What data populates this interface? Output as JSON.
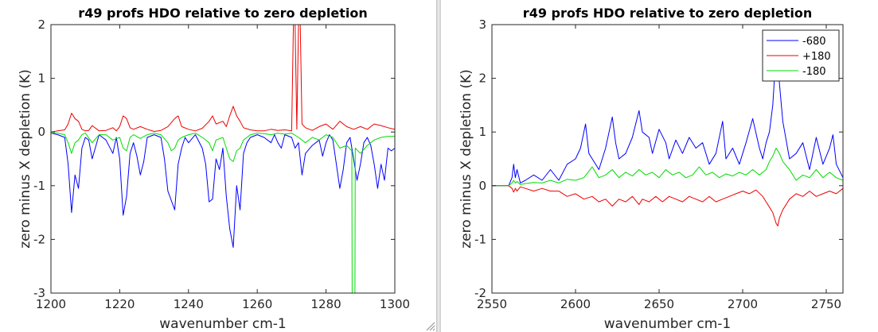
{
  "colors": {
    "blue": "#0000ff",
    "red": "#ee0000",
    "green": "#00dd00",
    "axis": "#262626",
    "background": "#ffffff"
  },
  "icons": {
    "resize": "resize-grip-icon"
  },
  "chart_data": [
    {
      "type": "line",
      "title": "r49 profs HDO relative to zero depletion",
      "xlabel": "wavenumber cm-1",
      "ylabel": "zero minus X depletion (K)",
      "xlim": [
        1200,
        1300
      ],
      "ylim": [
        -3,
        2
      ],
      "xticks": [
        1200,
        1220,
        1240,
        1260,
        1280,
        1300
      ],
      "yticks": [
        -3,
        -2,
        -1,
        0,
        1,
        2
      ],
      "grid": false,
      "legend": null,
      "series": [
        {
          "color": "#0000ff",
          "x": [
            1200,
            1202,
            1204,
            1205,
            1206,
            1207,
            1208,
            1209,
            1210,
            1211,
            1212,
            1214,
            1215,
            1216,
            1218,
            1219,
            1220,
            1221,
            1222,
            1223,
            1224,
            1225,
            1226,
            1227,
            1228,
            1230,
            1232,
            1233,
            1234,
            1236,
            1237,
            1238,
            1239,
            1240,
            1242,
            1244,
            1245,
            1246,
            1247,
            1248,
            1249,
            1250,
            1251,
            1252,
            1253,
            1254,
            1255,
            1256,
            1257,
            1258,
            1260,
            1262,
            1264,
            1265,
            1266,
            1267,
            1268,
            1270,
            1271,
            1272,
            1273,
            1274,
            1276,
            1278,
            1279,
            1280,
            1281,
            1282,
            1284,
            1285,
            1286,
            1287,
            1288,
            1289,
            1290,
            1291,
            1292,
            1293,
            1294,
            1295,
            1296,
            1297,
            1298,
            1299,
            1300
          ],
          "y": [
            -0.02,
            -0.05,
            -0.1,
            -0.6,
            -1.5,
            -0.8,
            -1.05,
            -0.3,
            -0.1,
            -0.15,
            -0.5,
            -0.05,
            -0.1,
            -0.15,
            -0.4,
            -0.1,
            -0.5,
            -1.55,
            -1.2,
            -0.4,
            -0.2,
            -0.45,
            -0.8,
            -0.55,
            -0.1,
            -0.05,
            -0.1,
            -0.5,
            -1.1,
            -1.45,
            -0.6,
            -0.3,
            -0.1,
            -0.2,
            -0.05,
            -0.3,
            -0.6,
            -1.3,
            -1.25,
            -0.5,
            -0.7,
            -0.3,
            -1.2,
            -1.8,
            -2.15,
            -1.0,
            -1.45,
            -0.4,
            -0.2,
            -0.1,
            -0.05,
            -0.1,
            -0.2,
            -0.05,
            -0.2,
            -0.3,
            -0.05,
            -0.1,
            -0.3,
            -0.2,
            -0.8,
            -0.4,
            -0.25,
            -0.15,
            -0.45,
            -0.2,
            -0.05,
            -0.15,
            -1.05,
            -0.7,
            -0.2,
            -0.1,
            -0.5,
            -0.9,
            -0.6,
            -0.2,
            -0.1,
            -0.25,
            -0.6,
            -1.05,
            -0.6,
            -0.9,
            -0.3,
            -0.35,
            -0.3
          ]
        },
        {
          "color": "#ee0000",
          "x": [
            1200,
            1202,
            1204,
            1205,
            1206,
            1207,
            1208,
            1209,
            1210,
            1211,
            1212,
            1214,
            1216,
            1218,
            1219,
            1220,
            1221,
            1222,
            1223,
            1224,
            1226,
            1228,
            1230,
            1232,
            1234,
            1236,
            1237,
            1238,
            1240,
            1242,
            1244,
            1246,
            1247,
            1248,
            1250,
            1251,
            1252,
            1253,
            1254,
            1255,
            1256,
            1258,
            1260,
            1262,
            1264,
            1266,
            1268,
            1270,
            1270.5,
            1271,
            1271.5,
            1272,
            1272.5,
            1273,
            1274,
            1276,
            1278,
            1280,
            1282,
            1284,
            1286,
            1288,
            1290,
            1292,
            1294,
            1296,
            1298,
            1300
          ],
          "y": [
            0.0,
            0.02,
            0.04,
            0.15,
            0.35,
            0.25,
            0.2,
            0.05,
            0.02,
            0.03,
            0.12,
            0.02,
            0.03,
            0.08,
            0.02,
            0.1,
            0.3,
            0.25,
            0.08,
            0.05,
            0.1,
            0.05,
            0.01,
            0.03,
            0.1,
            0.25,
            0.3,
            0.1,
            0.05,
            0.02,
            0.07,
            0.2,
            0.3,
            0.15,
            0.2,
            0.1,
            0.3,
            0.48,
            0.3,
            0.2,
            0.08,
            0.04,
            0.02,
            0.02,
            0.05,
            0.03,
            0.04,
            0.02,
            2.0,
            2.0,
            0.05,
            2.0,
            2.0,
            0.15,
            0.08,
            0.03,
            0.1,
            0.15,
            0.05,
            0.2,
            0.1,
            0.05,
            0.1,
            0.05,
            0.15,
            0.12,
            0.08,
            0.05
          ]
        },
        {
          "color": "#00dd00",
          "x": [
            1200,
            1202,
            1204,
            1205,
            1206,
            1207,
            1208,
            1209,
            1210,
            1212,
            1214,
            1216,
            1218,
            1220,
            1221,
            1222,
            1223,
            1224,
            1226,
            1228,
            1230,
            1232,
            1234,
            1235,
            1236,
            1237,
            1238,
            1240,
            1242,
            1244,
            1246,
            1247,
            1248,
            1250,
            1251,
            1252,
            1253,
            1254,
            1255,
            1256,
            1258,
            1260,
            1262,
            1264,
            1266,
            1268,
            1270,
            1272,
            1274,
            1276,
            1278,
            1280,
            1282,
            1284,
            1286,
            1287.5,
            1287.6,
            1288.4,
            1288.5,
            1290,
            1292,
            1294,
            1296,
            1298,
            1300
          ],
          "y": [
            -0.02,
            -0.02,
            -0.05,
            -0.2,
            -0.4,
            -0.2,
            -0.15,
            -0.05,
            -0.02,
            -0.2,
            -0.05,
            -0.05,
            -0.15,
            -0.1,
            -0.3,
            -0.35,
            -0.1,
            -0.05,
            -0.12,
            -0.05,
            -0.02,
            -0.05,
            -0.2,
            -0.35,
            -0.3,
            -0.15,
            -0.1,
            -0.05,
            -0.02,
            -0.1,
            -0.2,
            -0.35,
            -0.15,
            -0.1,
            -0.3,
            -0.5,
            -0.55,
            -0.35,
            -0.3,
            -0.15,
            -0.05,
            -0.02,
            -0.03,
            -0.05,
            -0.02,
            -0.04,
            -0.02,
            -0.1,
            -0.2,
            -0.1,
            -0.15,
            -0.05,
            -0.1,
            -0.3,
            -0.25,
            -0.35,
            -3.0,
            -3.0,
            -0.3,
            -0.4,
            -0.25,
            -0.15,
            -0.1,
            -0.08,
            -0.08
          ]
        }
      ]
    },
    {
      "type": "line",
      "title": "r49 profs HDO relative to zero depletion",
      "xlabel": "wavenumber cm-1",
      "ylabel": "zero minus X depletion (K)",
      "xlim": [
        2550,
        2760
      ],
      "ylim": [
        -2,
        3
      ],
      "xticks": [
        2550,
        2600,
        2650,
        2700,
        2750
      ],
      "yticks": [
        -2,
        -1,
        0,
        1,
        2,
        3
      ],
      "grid": false,
      "legend": {
        "placement": "top-right",
        "entries": [
          "-680",
          "+180",
          "-180"
        ]
      },
      "series": [
        {
          "name": "-680",
          "color": "#0000ff",
          "x": [
            2550,
            2555,
            2560,
            2562,
            2563,
            2564,
            2565,
            2567,
            2570,
            2575,
            2580,
            2585,
            2590,
            2595,
            2600,
            2603,
            2606,
            2608,
            2610,
            2614,
            2618,
            2622,
            2624,
            2626,
            2630,
            2634,
            2638,
            2640,
            2644,
            2646,
            2650,
            2654,
            2656,
            2660,
            2664,
            2668,
            2672,
            2676,
            2680,
            2684,
            2688,
            2690,
            2694,
            2698,
            2702,
            2706,
            2710,
            2712,
            2714,
            2716,
            2718,
            2719,
            2720,
            2721,
            2722,
            2724,
            2728,
            2732,
            2736,
            2740,
            2744,
            2748,
            2752,
            2754,
            2756,
            2760
          ],
          "y": [
            0.0,
            0.0,
            0.0,
            0.15,
            0.4,
            0.15,
            0.3,
            0.05,
            0.1,
            0.2,
            0.1,
            0.3,
            0.1,
            0.4,
            0.5,
            0.7,
            1.15,
            0.6,
            0.5,
            0.3,
            0.7,
            1.28,
            0.8,
            0.5,
            0.6,
            0.9,
            1.4,
            1.0,
            0.9,
            0.6,
            1.05,
            0.8,
            0.5,
            0.85,
            0.6,
            0.9,
            0.7,
            0.8,
            0.4,
            0.6,
            1.2,
            0.5,
            0.7,
            0.4,
            0.8,
            1.25,
            0.7,
            0.5,
            0.8,
            1.0,
            1.5,
            2.0,
            2.6,
            2.3,
            1.9,
            1.2,
            0.5,
            0.6,
            0.8,
            0.3,
            0.9,
            0.4,
            0.7,
            0.95,
            0.4,
            0.15
          ]
        },
        {
          "name": "+180",
          "color": "#ee0000",
          "x": [
            2550,
            2555,
            2560,
            2562,
            2563,
            2564,
            2565,
            2567,
            2570,
            2575,
            2580,
            2585,
            2590,
            2595,
            2600,
            2605,
            2610,
            2614,
            2618,
            2622,
            2626,
            2630,
            2634,
            2638,
            2640,
            2644,
            2648,
            2652,
            2656,
            2660,
            2664,
            2668,
            2672,
            2676,
            2680,
            2684,
            2688,
            2692,
            2696,
            2700,
            2704,
            2708,
            2712,
            2714,
            2716,
            2718,
            2720,
            2721,
            2722,
            2724,
            2728,
            2732,
            2736,
            2740,
            2744,
            2748,
            2752,
            2756,
            2760
          ],
          "y": [
            0.0,
            0.0,
            0.0,
            -0.05,
            -0.12,
            -0.05,
            -0.1,
            -0.02,
            -0.05,
            -0.1,
            -0.05,
            -0.1,
            -0.1,
            -0.2,
            -0.15,
            -0.25,
            -0.2,
            -0.3,
            -0.25,
            -0.38,
            -0.25,
            -0.3,
            -0.2,
            -0.35,
            -0.25,
            -0.3,
            -0.2,
            -0.3,
            -0.2,
            -0.25,
            -0.3,
            -0.2,
            -0.25,
            -0.3,
            -0.2,
            -0.3,
            -0.25,
            -0.2,
            -0.15,
            -0.1,
            -0.15,
            -0.08,
            -0.2,
            -0.3,
            -0.4,
            -0.5,
            -0.7,
            -0.75,
            -0.6,
            -0.45,
            -0.25,
            -0.15,
            -0.2,
            -0.1,
            -0.2,
            -0.15,
            -0.1,
            -0.15,
            -0.05
          ]
        },
        {
          "name": "-180",
          "color": "#00dd00",
          "x": [
            2550,
            2555,
            2560,
            2562,
            2563,
            2564,
            2565,
            2567,
            2570,
            2575,
            2580,
            2585,
            2590,
            2595,
            2600,
            2605,
            2610,
            2614,
            2618,
            2622,
            2626,
            2630,
            2634,
            2638,
            2642,
            2646,
            2650,
            2654,
            2658,
            2662,
            2666,
            2670,
            2674,
            2678,
            2682,
            2686,
            2690,
            2694,
            2698,
            2702,
            2706,
            2710,
            2714,
            2716,
            2718,
            2720,
            2722,
            2724,
            2728,
            2732,
            2736,
            2740,
            2744,
            2748,
            2752,
            2756,
            2760
          ],
          "y": [
            0.0,
            0.0,
            0.0,
            0.05,
            0.1,
            0.05,
            0.08,
            0.02,
            0.04,
            0.06,
            0.05,
            0.1,
            0.05,
            0.12,
            0.1,
            0.15,
            0.35,
            0.15,
            0.2,
            0.3,
            0.15,
            0.25,
            0.18,
            0.3,
            0.2,
            0.25,
            0.15,
            0.3,
            0.2,
            0.25,
            0.15,
            0.2,
            0.35,
            0.2,
            0.25,
            0.15,
            0.22,
            0.18,
            0.25,
            0.2,
            0.3,
            0.2,
            0.3,
            0.45,
            0.55,
            0.7,
            0.6,
            0.45,
            0.3,
            0.1,
            0.2,
            0.15,
            0.3,
            0.15,
            0.25,
            0.15,
            0.1
          ]
        }
      ]
    }
  ]
}
